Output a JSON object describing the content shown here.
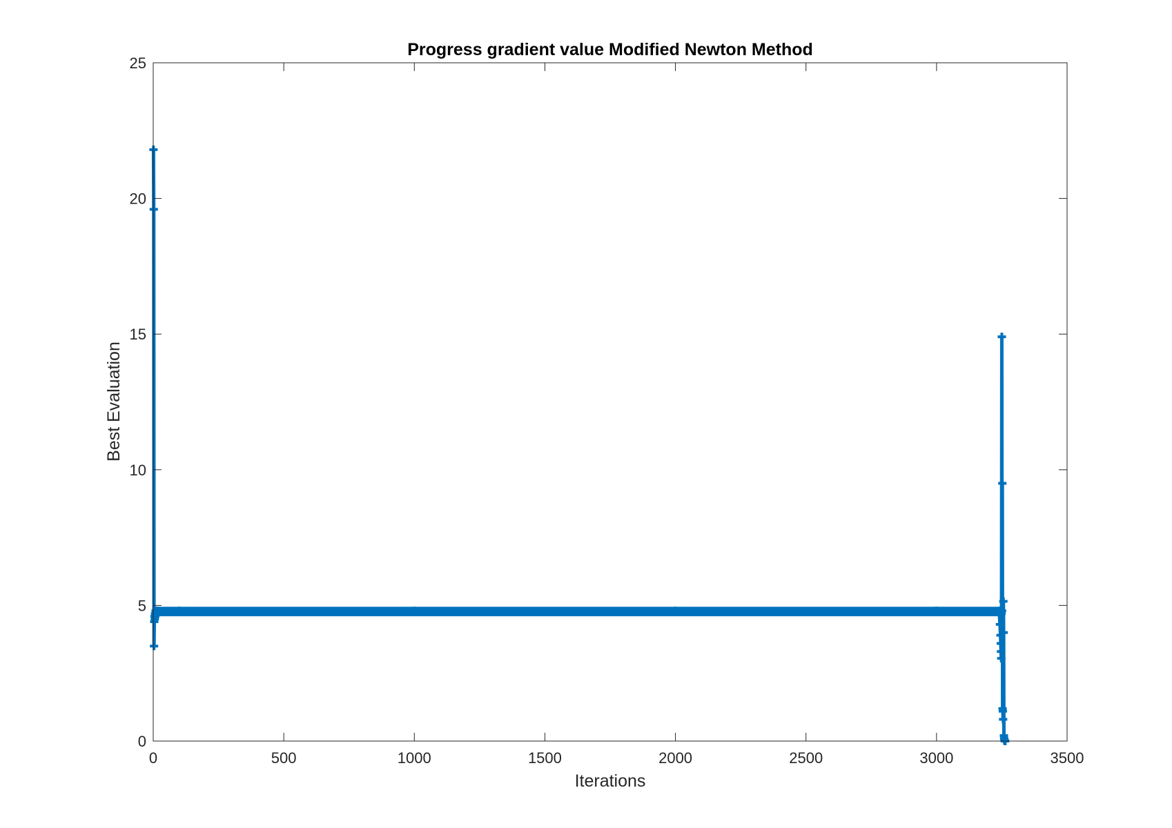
{
  "chart_data": {
    "type": "line",
    "title": "Progress gradient value Modified Newton Method",
    "xlabel": "Iterations",
    "ylabel": "Best Evaluation",
    "xlim": [
      0,
      3500
    ],
    "ylim": [
      0,
      25
    ],
    "xticks": [
      0,
      500,
      1000,
      1500,
      2000,
      2500,
      3000,
      3500
    ],
    "yticks": [
      0,
      5,
      10,
      15,
      20,
      25
    ],
    "grid": false,
    "box": true,
    "marker": "plus",
    "color": "#0072BD",
    "series": [
      {
        "x": [
          1,
          2,
          3,
          4,
          5,
          6,
          7,
          8,
          9,
          10,
          12,
          15,
          20,
          30,
          100,
          500,
          1000,
          1500,
          2000,
          2500,
          3000,
          3200,
          3240,
          3243,
          3245,
          3246,
          3247,
          3248,
          3249,
          3250,
          3251,
          3252,
          3253,
          3254,
          3255,
          3256,
          3257,
          3258,
          3259,
          3260,
          3261,
          3262,
          3263
        ],
        "values": [
          21.8,
          19.6,
          3.5,
          4.4,
          4.6,
          4.5,
          4.7,
          4.6,
          4.8,
          4.7,
          4.8,
          4.75,
          4.8,
          4.78,
          4.8,
          4.79,
          4.8,
          4.79,
          4.8,
          4.79,
          4.8,
          4.79,
          4.8,
          4.3,
          3.9,
          3.6,
          3.3,
          3.05,
          4.7,
          14.9,
          4.8,
          9.5,
          1.2,
          1.1,
          0.8,
          5.15,
          4.0,
          0.2,
          0.1,
          0.05,
          0.02,
          0.0,
          0.0
        ]
      }
    ]
  }
}
